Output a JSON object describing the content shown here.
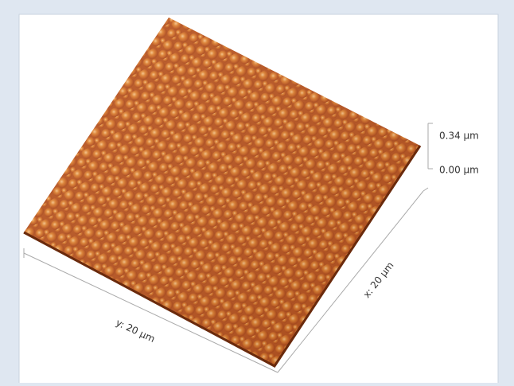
{
  "scale": {
    "top": "0.34 µm",
    "bottom": "0.00 µm"
  },
  "axes": {
    "y": "y: 20 µm",
    "x": "x: 20 µm"
  }
}
